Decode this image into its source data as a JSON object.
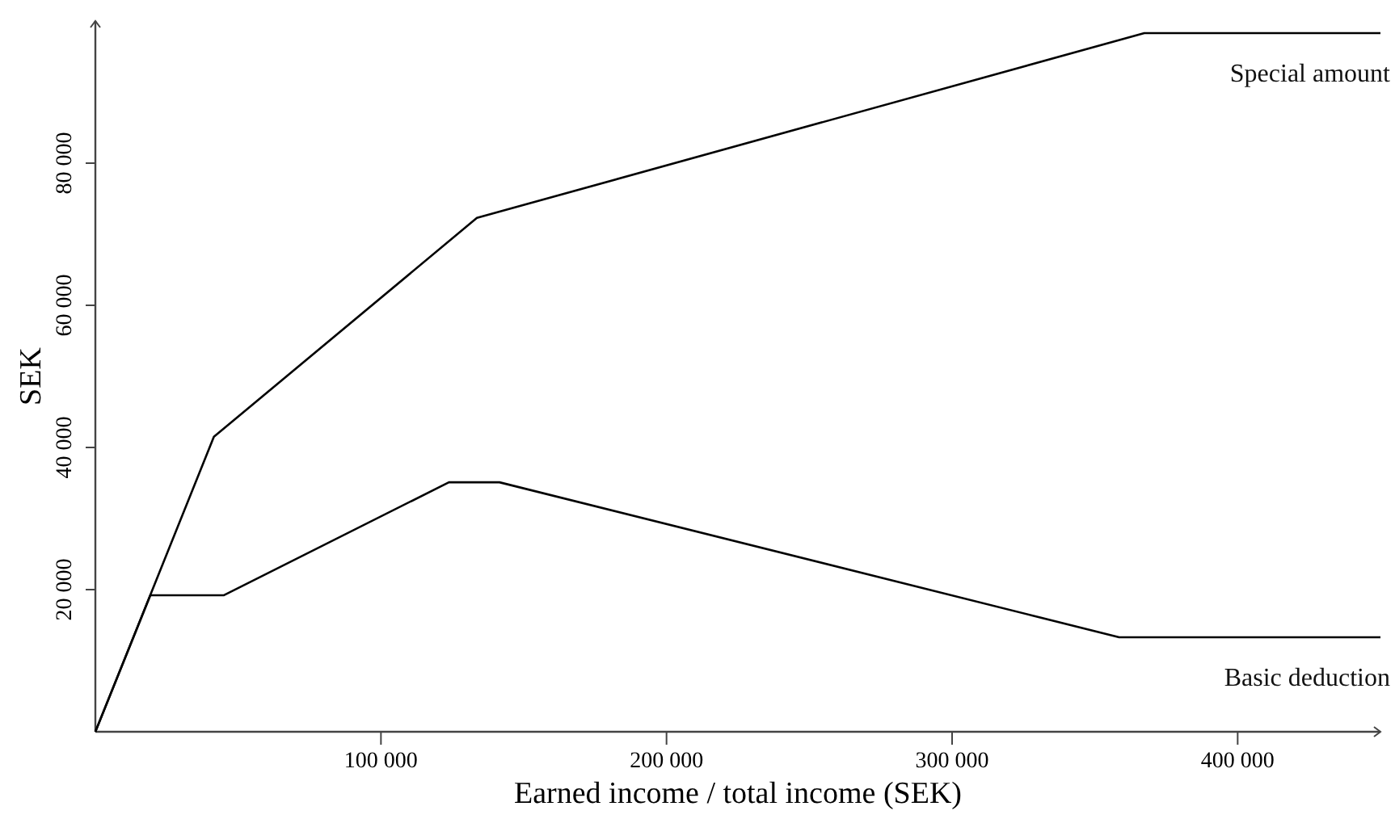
{
  "chart_data": {
    "type": "line",
    "xlabel": "Earned income / total income (SEK)",
    "ylabel": "SEK",
    "xlim": [
      0,
      450000
    ],
    "ylim": [
      0,
      100000
    ],
    "xticks": [
      {
        "value": 100000,
        "label": "100 000"
      },
      {
        "value": 200000,
        "label": "200 000"
      },
      {
        "value": 300000,
        "label": "300 000"
      },
      {
        "value": 400000,
        "label": "400 000"
      }
    ],
    "yticks": [
      {
        "value": 20000,
        "label": "20 000"
      },
      {
        "value": 40000,
        "label": "40 000"
      },
      {
        "value": 60000,
        "label": "60 000"
      },
      {
        "value": 80000,
        "label": "80 000"
      }
    ],
    "grid": false,
    "marker": "none",
    "line_style": "solid",
    "series": [
      {
        "name": "Special amount",
        "color": "#000000",
        "x": [
          0,
          41500,
          133600,
          367300,
          450000
        ],
        "values": [
          0,
          41500,
          72300,
          98300,
          98300
        ]
      },
      {
        "name": "Basic deduction",
        "color": "#000000",
        "x": [
          0,
          19250,
          44900,
          123800,
          141500,
          358500,
          450000
        ],
        "values": [
          0,
          19200,
          19200,
          35100,
          35100,
          13300,
          13300
        ]
      }
    ]
  }
}
